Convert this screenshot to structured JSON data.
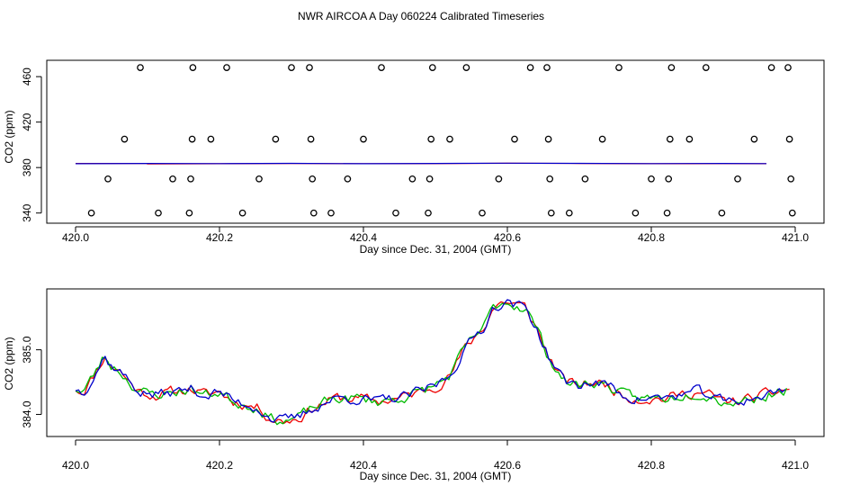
{
  "title": "NWR AIRCOA A  Day 060224  Calibrated Timeseries",
  "colors": {
    "red": "#ee0000",
    "green": "#00bb00",
    "blue": "#0000cc",
    "points": "#000000",
    "frame": "#000000"
  },
  "chart_data": [
    {
      "type": "scatter",
      "name": "raw-calibration",
      "xlabel": "Day since Dec. 31, 2004 (GMT)",
      "ylabel": "CO2 (ppm)",
      "xlim": [
        420.0,
        421.0
      ],
      "ylim": [
        335,
        472
      ],
      "xticks": [
        420.0,
        420.2,
        420.4,
        420.6,
        420.8,
        421.0
      ],
      "xtick_labels": [
        "420.0",
        "420.2",
        "420.4",
        "420.6",
        "420.8",
        "421.0"
      ],
      "yticks": [
        340,
        380,
        420,
        460
      ],
      "ytick_labels": [
        "340",
        "380",
        "420",
        "460"
      ],
      "points": [
        [
          420.022,
          340
        ],
        [
          420.045,
          370
        ],
        [
          420.068,
          405
        ],
        [
          420.09,
          468
        ],
        [
          420.115,
          340
        ],
        [
          420.135,
          370
        ],
        [
          420.158,
          340
        ],
        [
          420.16,
          370
        ],
        [
          420.162,
          405
        ],
        [
          420.163,
          468
        ],
        [
          420.188,
          405
        ],
        [
          420.21,
          468
        ],
        [
          420.232,
          340
        ],
        [
          420.255,
          370
        ],
        [
          420.278,
          405
        ],
        [
          420.3,
          468
        ],
        [
          420.325,
          468
        ],
        [
          420.327,
          405
        ],
        [
          420.329,
          370
        ],
        [
          420.331,
          340
        ],
        [
          420.355,
          340
        ],
        [
          420.378,
          370
        ],
        [
          420.4,
          405
        ],
        [
          420.425,
          468
        ],
        [
          420.445,
          340
        ],
        [
          420.468,
          370
        ],
        [
          420.49,
          340
        ],
        [
          420.492,
          370
        ],
        [
          420.494,
          405
        ],
        [
          420.496,
          468
        ],
        [
          420.52,
          405
        ],
        [
          420.543,
          468
        ],
        [
          420.565,
          340
        ],
        [
          420.588,
          370
        ],
        [
          420.61,
          405
        ],
        [
          420.632,
          468
        ],
        [
          420.655,
          468
        ],
        [
          420.657,
          405
        ],
        [
          420.659,
          370
        ],
        [
          420.661,
          340
        ],
        [
          420.686,
          340
        ],
        [
          420.708,
          370
        ],
        [
          420.732,
          405
        ],
        [
          420.755,
          468
        ],
        [
          420.778,
          340
        ],
        [
          420.8,
          370
        ],
        [
          420.822,
          340
        ],
        [
          420.824,
          370
        ],
        [
          420.826,
          405
        ],
        [
          420.828,
          468
        ],
        [
          420.853,
          405
        ],
        [
          420.876,
          468
        ],
        [
          420.898,
          340
        ],
        [
          420.92,
          370
        ],
        [
          420.943,
          405
        ],
        [
          420.967,
          468
        ],
        [
          420.99,
          468
        ],
        [
          420.992,
          405
        ],
        [
          420.994,
          370
        ],
        [
          420.996,
          340
        ]
      ],
      "series": [
        {
          "name": "red",
          "color": "#ee0000",
          "x": [
            420.0,
            420.1,
            420.1,
            420.2,
            420.3,
            420.4,
            420.5,
            420.6,
            420.7,
            420.8,
            420.9,
            420.96
          ],
          "y": [
            383.6,
            383.6,
            383.2,
            383.4,
            383.6,
            383.4,
            383.5,
            383.8,
            383.6,
            383.4,
            383.5,
            383.4
          ]
        },
        {
          "name": "blue",
          "color": "#0000cc",
          "x": [
            420.0,
            420.1,
            420.2,
            420.3,
            420.4,
            420.5,
            420.6,
            420.7,
            420.8,
            420.9,
            420.96
          ],
          "y": [
            383.4,
            383.6,
            383.5,
            383.7,
            383.4,
            383.6,
            383.9,
            383.7,
            383.5,
            383.6,
            383.5
          ]
        }
      ]
    },
    {
      "type": "line",
      "name": "calibrated-series",
      "xlabel": "Day since Dec. 31, 2004 (GMT)",
      "ylabel": "CO2 (ppm)",
      "xlim": [
        420.0,
        421.0
      ],
      "ylim": [
        383.7,
        385.9
      ],
      "xticks": [
        420.0,
        420.2,
        420.4,
        420.6,
        420.8,
        421.0
      ],
      "xtick_labels": [
        "420.0",
        "420.2",
        "420.4",
        "420.6",
        "420.8",
        "421.0"
      ],
      "yticks": [
        384.0,
        385.0
      ],
      "ytick_labels": [
        "384.0",
        "385.0"
      ],
      "anchors_x": [
        420.0,
        420.01,
        420.025,
        420.04,
        420.05,
        420.06,
        420.075,
        420.09,
        420.11,
        420.14,
        420.16,
        420.18,
        420.2,
        420.22,
        420.24,
        420.255,
        420.27,
        420.29,
        420.31,
        420.33,
        420.36,
        420.39,
        420.42,
        420.45,
        420.48,
        420.5,
        420.52,
        420.54,
        420.555,
        420.57,
        420.58,
        420.595,
        420.61,
        420.625,
        420.64,
        420.655,
        420.665,
        420.68,
        420.7,
        420.72,
        420.74,
        420.76,
        420.78,
        420.8,
        420.82,
        420.84,
        420.86,
        420.88,
        420.9,
        420.92,
        420.94,
        420.96,
        420.975,
        420.99
      ],
      "anchors_y": [
        384.4,
        384.35,
        384.6,
        384.9,
        384.75,
        384.7,
        384.5,
        384.35,
        384.3,
        384.35,
        384.4,
        384.3,
        384.35,
        384.2,
        384.15,
        384.1,
        383.95,
        383.9,
        383.95,
        384.1,
        384.25,
        384.25,
        384.2,
        384.25,
        384.35,
        384.45,
        384.6,
        385.0,
        385.2,
        385.4,
        385.65,
        385.75,
        385.7,
        385.65,
        385.35,
        384.95,
        384.75,
        384.5,
        384.45,
        384.5,
        384.45,
        384.3,
        384.25,
        384.25,
        384.25,
        384.3,
        384.35,
        384.3,
        384.2,
        384.2,
        384.25,
        384.3,
        384.35,
        384.4
      ],
      "series": [
        {
          "name": "red",
          "color": "#ee0000",
          "x_end": 420.992,
          "seed": 11
        },
        {
          "name": "green",
          "color": "#00bb00",
          "x_end": 420.988,
          "seed": 23
        },
        {
          "name": "blue",
          "color": "#0000cc",
          "x_end": 420.986,
          "seed": 37
        }
      ]
    }
  ]
}
